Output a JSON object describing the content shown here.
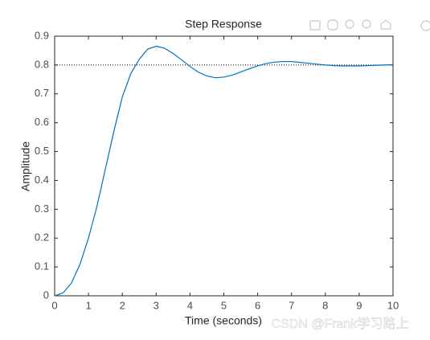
{
  "chart_data": {
    "type": "line",
    "title": "Step Response",
    "x_label": "Time (seconds)",
    "y_label": "Amplitude",
    "x": [
      0,
      0.25,
      0.5,
      0.75,
      1,
      1.25,
      1.5,
      1.75,
      2,
      2.25,
      2.5,
      2.75,
      3,
      3.25,
      3.5,
      3.75,
      4,
      4.25,
      4.5,
      4.75,
      5,
      5.25,
      5.5,
      5.75,
      6,
      6.25,
      6.5,
      6.75,
      7,
      7.25,
      7.5,
      7.75,
      8,
      8.25,
      8.5,
      8.75,
      9,
      9.25,
      9.5,
      9.75,
      10
    ],
    "values": [
      0,
      0.01,
      0.045,
      0.11,
      0.2,
      0.31,
      0.44,
      0.57,
      0.69,
      0.77,
      0.82,
      0.855,
      0.865,
      0.858,
      0.84,
      0.818,
      0.795,
      0.775,
      0.762,
      0.756,
      0.758,
      0.765,
      0.776,
      0.787,
      0.797,
      0.805,
      0.81,
      0.812,
      0.812,
      0.809,
      0.806,
      0.803,
      0.8,
      0.798,
      0.797,
      0.797,
      0.797,
      0.798,
      0.799,
      0.8,
      0.801
    ],
    "color": "#0072bd",
    "reference_line": 0.8,
    "xlim": [
      0,
      10
    ],
    "xticks": [
      0,
      1,
      2,
      3,
      4,
      5,
      6,
      7,
      8,
      9,
      10
    ],
    "ylim": [
      0,
      0.9
    ],
    "yticks": [
      0,
      0.1,
      0.2,
      0.3,
      0.4,
      0.5,
      0.6,
      0.7,
      0.8,
      0.9
    ],
    "watermark": "CSDN @Frank学习路上"
  }
}
